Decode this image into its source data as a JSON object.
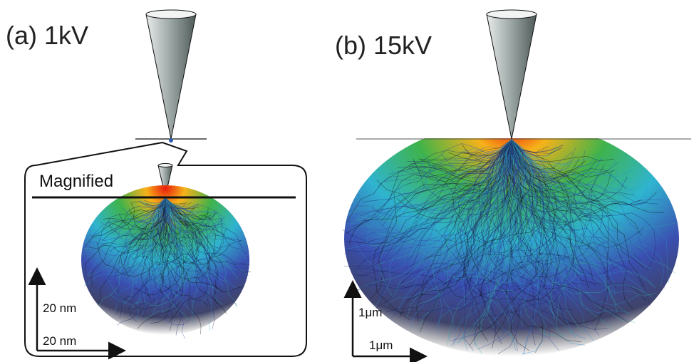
{
  "panel_a": {
    "label": "(a) 1kV",
    "inset_label": "Magnified",
    "scale_y": "20 nm",
    "scale_x": "20 nm"
  },
  "panel_b": {
    "label": "(b) 15kV",
    "scale_y": "1μm",
    "scale_x": "1μm"
  }
}
